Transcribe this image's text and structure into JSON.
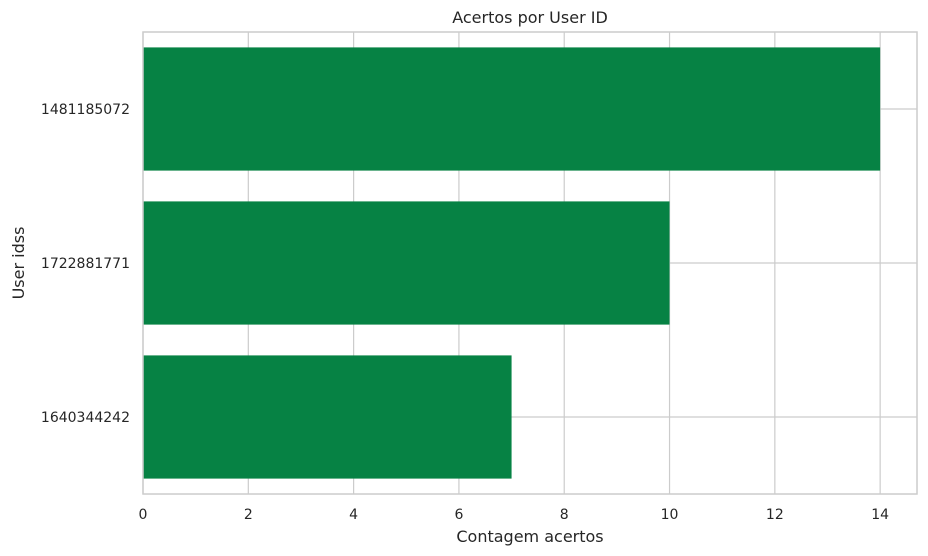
{
  "chart_data": {
    "type": "bar",
    "orientation": "horizontal",
    "title": "Acertos por User ID",
    "xlabel": "Contagem acertos",
    "ylabel": "User idss",
    "categories": [
      "1481185072",
      "1722881771",
      "1640344242"
    ],
    "values": [
      14,
      10,
      7
    ],
    "xlim": [
      0,
      14.7
    ],
    "xticks": [
      0,
      2,
      4,
      6,
      8,
      10,
      12,
      14
    ],
    "grid": true,
    "legend": "none",
    "colors": {
      "bar": "#068244",
      "grid": "#cccccc",
      "frame": "#cccccc",
      "text": "#262626"
    }
  }
}
